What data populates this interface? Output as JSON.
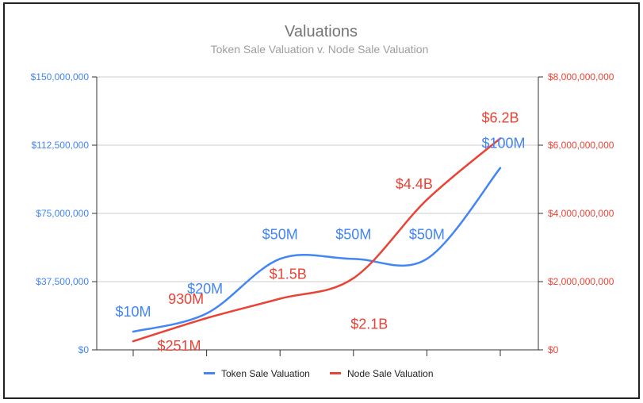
{
  "chart_data": {
    "type": "line",
    "title": "Valuations",
    "subtitle": "Token Sale Valuation v. Node Sale Valuation",
    "categories": [
      "",
      "",
      "",
      "",
      "",
      ""
    ],
    "left_axis": {
      "range": [
        0,
        150000000
      ],
      "ticks": [
        {
          "value": 0,
          "label": "$0"
        },
        {
          "value": 37500000,
          "label": "$37,500,000"
        },
        {
          "value": 75000000,
          "label": "$75,000,000"
        },
        {
          "value": 112500000,
          "label": "$112,500,000"
        },
        {
          "value": 150000000,
          "label": "$150,000,000"
        }
      ]
    },
    "right_axis": {
      "range": [
        0,
        8000000000
      ],
      "ticks": [
        {
          "value": 0,
          "label": "$0"
        },
        {
          "value": 2000000000,
          "label": "$2,000,000,000"
        },
        {
          "value": 4000000000,
          "label": "$4,000,000,000"
        },
        {
          "value": 6000000000,
          "label": "$6,000,000,000"
        },
        {
          "value": 8000000000,
          "label": "$8,000,000,000"
        }
      ]
    },
    "series": [
      {
        "name": "Token Sale Valuation",
        "axis": "left",
        "color": "#4285f4",
        "values": [
          10000000,
          20000000,
          50000000,
          50000000,
          50000000,
          100000000
        ],
        "labels": [
          "$10M",
          "$20M",
          "$50M",
          "$50M",
          "$50M",
          "$100M"
        ]
      },
      {
        "name": "Node Sale Valuation",
        "axis": "right",
        "color": "#ea4335",
        "values": [
          251000000,
          930000000,
          1500000000,
          2100000000,
          4400000000,
          6200000000
        ],
        "labels": [
          "$251M",
          "930M",
          "$1.5B",
          "$2.1B",
          "$4.4B",
          "$6.2B"
        ]
      }
    ],
    "grid": true,
    "legend": "bottom"
  }
}
